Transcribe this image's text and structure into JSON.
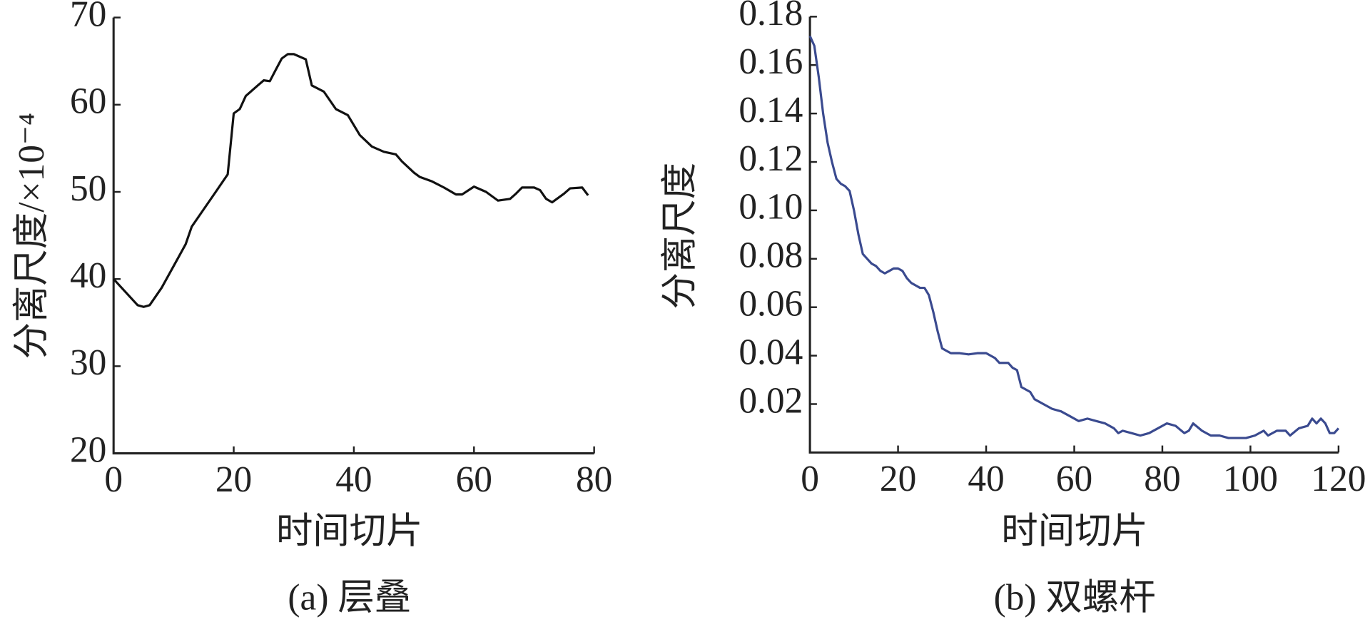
{
  "chart_data": [
    {
      "type": "line",
      "caption": "(a) 层叠",
      "xlabel": "时间切片",
      "ylabel": "分离尺度/×10⁻⁴",
      "color": "#111111",
      "xlim": [
        0,
        80
      ],
      "xticks": [
        0,
        20,
        40,
        60,
        80
      ],
      "ylim": [
        20,
        70
      ],
      "yticks": [
        20,
        30,
        40,
        50,
        60,
        70
      ],
      "x": [
        0,
        2,
        4,
        5,
        6,
        8,
        10,
        12,
        13,
        15,
        17,
        19,
        20,
        21,
        22,
        24,
        25,
        26,
        27,
        28,
        29,
        30,
        32,
        33,
        35,
        37,
        39,
        41,
        43,
        45,
        47,
        48,
        50,
        51,
        53,
        55,
        57,
        58,
        60,
        62,
        64,
        66,
        67,
        68,
        70,
        71,
        72,
        73,
        75,
        76,
        78,
        79
      ],
      "values": [
        40,
        38.5,
        37,
        36.8,
        37,
        39,
        41.5,
        44,
        46,
        48,
        50,
        52,
        59,
        59.5,
        61,
        62.2,
        62.8,
        62.7,
        64,
        65.3,
        65.8,
        65.8,
        65.2,
        62.2,
        61.5,
        59.5,
        58.8,
        56.5,
        55.2,
        54.6,
        54.3,
        53.5,
        52.2,
        51.7,
        51.2,
        50.5,
        49.7,
        49.7,
        50.6,
        50,
        49,
        49.2,
        49.8,
        50.5,
        50.5,
        50.2,
        49.2,
        48.8,
        49.8,
        50.4,
        50.5,
        49.6
      ]
    },
    {
      "type": "line",
      "caption": "(b) 双螺杆",
      "xlabel": "时间切片",
      "ylabel": "分离尺度",
      "color": "#3a4a8f",
      "xlim": [
        0,
        120
      ],
      "xticks": [
        0,
        20,
        40,
        60,
        80,
        100,
        120
      ],
      "ylim": [
        0,
        0.18
      ],
      "yticks": [
        0.02,
        0.04,
        0.06,
        0.08,
        {
          "value": 0.1,
          "label": "0.10"
        },
        0.12,
        0.14,
        0.16,
        0.18
      ],
      "x": [
        0,
        1,
        2,
        3,
        4,
        5,
        6,
        7,
        8,
        9,
        10,
        11,
        12,
        13,
        14,
        15,
        16,
        17,
        18,
        19,
        20,
        21,
        22,
        23,
        24,
        25,
        26,
        27,
        28,
        29,
        30,
        31,
        32,
        34,
        36,
        38,
        40,
        42,
        43,
        45,
        46,
        47,
        48,
        50,
        51,
        53,
        55,
        57,
        59,
        61,
        63,
        65,
        67,
        69,
        70,
        71,
        73,
        75,
        77,
        79,
        81,
        83,
        85,
        86,
        87,
        89,
        91,
        93,
        95,
        97,
        99,
        101,
        103,
        104,
        106,
        108,
        109,
        111,
        113,
        114,
        115,
        116,
        117,
        118,
        119,
        120
      ],
      "values": [
        0.172,
        0.168,
        0.155,
        0.14,
        0.128,
        0.12,
        0.113,
        0.111,
        0.11,
        0.108,
        0.1,
        0.09,
        0.082,
        0.08,
        0.078,
        0.077,
        0.075,
        0.074,
        0.075,
        0.076,
        0.076,
        0.075,
        0.072,
        0.07,
        0.069,
        0.068,
        0.068,
        0.065,
        0.058,
        0.05,
        0.043,
        0.042,
        0.041,
        0.041,
        0.0405,
        0.041,
        0.041,
        0.039,
        0.037,
        0.037,
        0.035,
        0.034,
        0.027,
        0.025,
        0.022,
        0.02,
        0.018,
        0.017,
        0.015,
        0.013,
        0.014,
        0.013,
        0.012,
        0.01,
        0.008,
        0.009,
        0.008,
        0.007,
        0.008,
        0.01,
        0.012,
        0.011,
        0.008,
        0.009,
        0.012,
        0.009,
        0.007,
        0.007,
        0.006,
        0.006,
        0.006,
        0.007,
        0.009,
        0.007,
        0.009,
        0.009,
        0.007,
        0.01,
        0.011,
        0.014,
        0.012,
        0.014,
        0.012,
        0.008,
        0.008,
        0.01
      ]
    }
  ]
}
